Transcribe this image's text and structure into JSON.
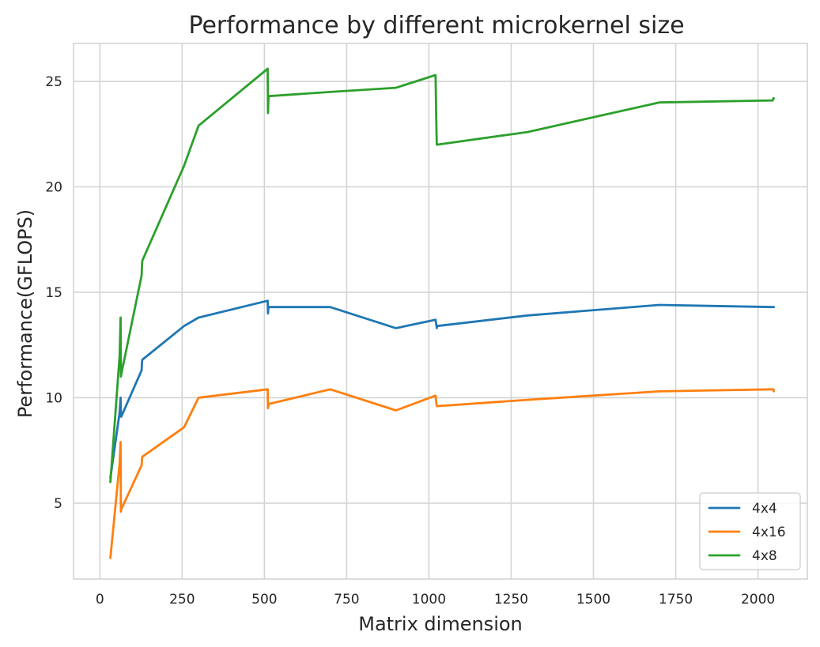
{
  "chart_data": {
    "type": "line",
    "title": "Performance by different microkernel size",
    "xlabel": "Matrix dimension",
    "ylabel": "Performance(GFLOPS)",
    "xlim": [
      -80,
      2150
    ],
    "ylim": [
      1.4,
      26.8
    ],
    "xticks": [
      0,
      250,
      500,
      750,
      1000,
      1250,
      1500,
      1750,
      2000
    ],
    "yticks": [
      5,
      10,
      15,
      20,
      25
    ],
    "grid": true,
    "legend_position": "lower-right",
    "series": [
      {
        "name": "4x4",
        "color": "#1f77b4",
        "x": [
          32,
          60,
          63,
          64,
          65,
          127,
          128,
          129,
          256,
          300,
          510,
          511,
          512,
          513,
          700,
          900,
          1020,
          1023,
          1024,
          1025,
          1300,
          1700,
          2045,
          2047,
          2048
        ],
        "y": [
          6.2,
          9.3,
          10.0,
          9.2,
          9.1,
          11.3,
          11.7,
          11.8,
          13.4,
          13.8,
          14.6,
          14.0,
          14.3,
          14.3,
          14.3,
          13.3,
          13.7,
          13.4,
          13.3,
          13.4,
          13.9,
          14.4,
          14.3,
          14.3,
          14.3
        ]
      },
      {
        "name": "4x16",
        "color": "#ff7f0e",
        "x": [
          32,
          60,
          63,
          64,
          65,
          127,
          128,
          129,
          256,
          300,
          510,
          511,
          512,
          513,
          700,
          900,
          1020,
          1023,
          1024,
          1025,
          1300,
          1700,
          2045,
          2047,
          2048
        ],
        "y": [
          2.4,
          6.9,
          7.9,
          4.6,
          4.7,
          6.8,
          7.1,
          7.2,
          8.6,
          10.0,
          10.4,
          9.5,
          9.6,
          9.7,
          10.4,
          9.4,
          10.1,
          9.7,
          9.6,
          9.6,
          9.9,
          10.3,
          10.4,
          10.4,
          10.3
        ]
      },
      {
        "name": "4x8",
        "color": "#2ca02c",
        "x": [
          32,
          60,
          63,
          64,
          65,
          127,
          128,
          129,
          256,
          300,
          510,
          511,
          512,
          513,
          700,
          900,
          1020,
          1023,
          1024,
          1025,
          1300,
          1700,
          2045,
          2047,
          2048
        ],
        "y": [
          6.0,
          12.0,
          13.8,
          11.0,
          11.1,
          15.8,
          16.3,
          16.5,
          21.0,
          22.9,
          25.6,
          23.5,
          24.1,
          24.3,
          24.5,
          24.7,
          25.3,
          22.6,
          22.0,
          22.0,
          22.6,
          24.0,
          24.1,
          24.2,
          24.2
        ]
      }
    ]
  }
}
